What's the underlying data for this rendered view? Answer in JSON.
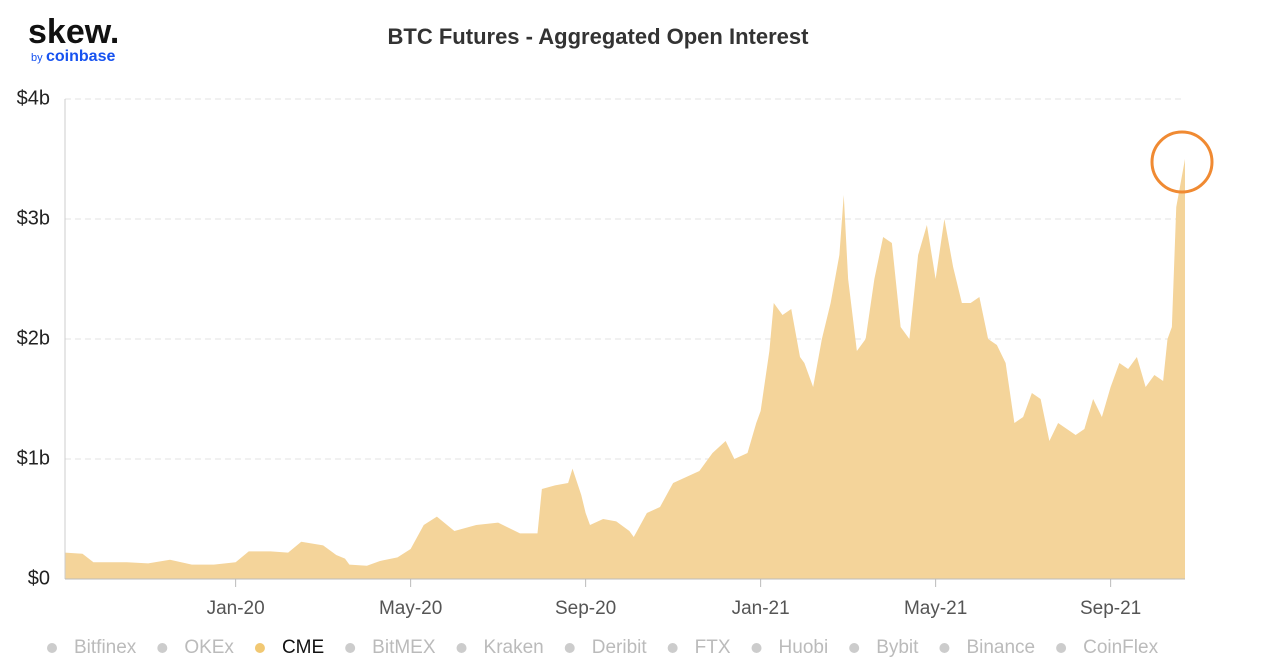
{
  "logo": {
    "name": "skew.",
    "by": "by",
    "brand": "coinbase"
  },
  "chart_data": {
    "type": "area",
    "title": "BTC Futures - Aggregated Open Interest",
    "x": [
      -3.9,
      -3.5,
      -3.25,
      -2.5,
      -2,
      -1.5,
      -1,
      -0.5,
      0,
      0.3,
      0.8,
      1.2,
      1.5,
      2.0,
      2.3,
      2.5,
      2.6,
      3.0,
      3.3,
      3.7,
      4.0,
      4.3,
      4.6,
      5.0,
      5.5,
      6.0,
      6.5,
      6.9,
      7.0,
      7.3,
      7.6,
      7.7,
      7.9,
      8.0,
      8.1,
      8.4,
      8.7,
      9.0,
      9.1,
      9.4,
      9.7,
      10.0,
      10.3,
      10.6,
      10.9,
      11.2,
      11.4,
      11.7,
      11.9,
      12.0,
      12.2,
      12.3,
      12.5,
      12.7,
      12.9,
      13.0,
      13.2,
      13.4,
      13.6,
      13.8,
      13.9,
      14.0,
      14.2,
      14.4,
      14.6,
      14.8,
      15.0,
      15.2,
      15.4,
      15.6,
      15.8,
      16.0,
      16.2,
      16.4,
      16.6,
      16.8,
      17.0,
      17.2,
      17.4,
      17.6,
      17.8,
      18.0,
      18.2,
      18.4,
      18.6,
      18.8,
      19.0,
      19.2,
      19.4,
      19.6,
      19.8,
      20.0,
      20.2,
      20.4,
      20.6,
      20.8,
      21.0,
      21.2,
      21.3,
      21.4,
      21.5,
      21.6,
      21.7
    ],
    "series": [
      {
        "name": "CME",
        "color": "#f4d49a",
        "values": [
          0.22,
          0.21,
          0.14,
          0.14,
          0.13,
          0.16,
          0.12,
          0.12,
          0.14,
          0.23,
          0.23,
          0.22,
          0.31,
          0.28,
          0.2,
          0.17,
          0.12,
          0.11,
          0.15,
          0.18,
          0.25,
          0.45,
          0.52,
          0.4,
          0.45,
          0.47,
          0.38,
          0.38,
          0.75,
          0.78,
          0.8,
          0.92,
          0.7,
          0.55,
          0.45,
          0.5,
          0.48,
          0.4,
          0.35,
          0.55,
          0.6,
          0.8,
          0.85,
          0.9,
          1.05,
          1.15,
          1.0,
          1.05,
          1.3,
          1.4,
          1.9,
          2.3,
          2.2,
          2.25,
          1.85,
          1.8,
          1.6,
          2.0,
          2.3,
          2.7,
          3.2,
          2.5,
          1.9,
          2.0,
          2.5,
          2.85,
          2.8,
          2.1,
          2.0,
          2.7,
          2.95,
          2.5,
          3.0,
          2.6,
          2.3,
          2.3,
          2.35,
          2.0,
          1.95,
          1.8,
          1.3,
          1.35,
          1.55,
          1.5,
          1.15,
          1.3,
          1.25,
          1.2,
          1.25,
          1.5,
          1.35,
          1.6,
          1.8,
          1.75,
          1.85,
          1.6,
          1.7,
          1.65,
          2.0,
          2.1,
          3.1,
          3.3,
          3.5
        ]
      }
    ],
    "legend": {
      "items": [
        "Bitfinex",
        "OKEx",
        "CME",
        "BitMEX",
        "Kraken",
        "Deribit",
        "FTX",
        "Huobi",
        "Bybit",
        "Binance",
        "CoinFlex"
      ],
      "active_index": 2,
      "active_color": "#f1c873",
      "inactive_color": "#cccccc"
    },
    "xlim": [
      -3.9,
      21.7
    ],
    "xticks": [
      {
        "value": 0,
        "label": "Jan-20"
      },
      {
        "value": 4,
        "label": "May-20"
      },
      {
        "value": 8,
        "label": "Sep-20"
      },
      {
        "value": 12,
        "label": "Jan-21"
      },
      {
        "value": 16,
        "label": "May-21"
      },
      {
        "value": 20,
        "label": "Sep-21"
      }
    ],
    "ylim": [
      0,
      4
    ],
    "yticks": [
      {
        "value": 0,
        "label": "$0"
      },
      {
        "value": 1,
        "label": "$1b"
      },
      {
        "value": 2,
        "label": "$2b"
      },
      {
        "value": 3,
        "label": "$3b"
      },
      {
        "value": 4,
        "label": "$4b"
      }
    ],
    "grid": true
  }
}
